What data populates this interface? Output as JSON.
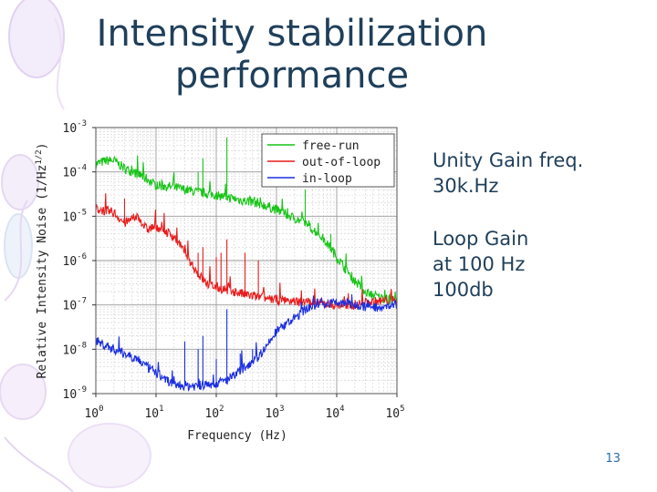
{
  "slide": {
    "title_line1": "Intensity stabilization",
    "title_line2": "performance",
    "bullets": [
      {
        "line1": "Unity Gain freq.",
        "line2": "30k.Hz"
      },
      {
        "line1": "Loop Gain",
        "line2": "at 100 Hz",
        "line3": "100db"
      }
    ],
    "page_number": "13",
    "colors": {
      "title": "#1f3f5a",
      "page_number": "#2a6ea8",
      "decor": "#e6d8f2"
    }
  },
  "chart_data": {
    "type": "line",
    "x_scale": "log",
    "y_scale": "log",
    "xlim": [
      1,
      100000
    ],
    "ylim": [
      1e-09,
      0.001
    ],
    "xlabel": "Frequency (Hz)",
    "ylabel": "Relative Intensity Noise (1/Hz1/2)",
    "ylabel_main": "Relative Intensity Noise (1/Hz",
    "ylabel_sup": "1/2",
    "ylabel_close": ")",
    "x_ticks": [
      {
        "value": 1,
        "base": "10",
        "exp": "0"
      },
      {
        "value": 10,
        "base": "10",
        "exp": "1"
      },
      {
        "value": 100,
        "base": "10",
        "exp": "2"
      },
      {
        "value": 1000,
        "base": "10",
        "exp": "3"
      },
      {
        "value": 10000,
        "base": "10",
        "exp": "4"
      },
      {
        "value": 100000,
        "base": "10",
        "exp": "5"
      }
    ],
    "y_ticks": [
      {
        "value": 0.001,
        "base": "10",
        "exp": "-3"
      },
      {
        "value": 0.0001,
        "base": "10",
        "exp": "-4"
      },
      {
        "value": 1e-05,
        "base": "10",
        "exp": "-5"
      },
      {
        "value": 1e-06,
        "base": "10",
        "exp": "-6"
      },
      {
        "value": 1e-07,
        "base": "10",
        "exp": "-7"
      },
      {
        "value": 1e-08,
        "base": "10",
        "exp": "-8"
      },
      {
        "value": 1e-09,
        "base": "10",
        "exp": "-9"
      }
    ],
    "grid": true,
    "legend_position": "top-right",
    "series": [
      {
        "name": "free-run",
        "color": "#17c417",
        "x": [
          1,
          1.5,
          2,
          3,
          5,
          7,
          10,
          20,
          30,
          50,
          100,
          200,
          300,
          500,
          1000,
          2000,
          3000,
          5000,
          7000,
          10000,
          20000,
          30000,
          50000,
          100000
        ],
        "y": [
          0.00015,
          0.00018,
          0.00018,
          0.00012,
          9e-05,
          7e-05,
          5e-05,
          4.5e-05,
          4e-05,
          3.5e-05,
          3e-05,
          2.5e-05,
          2.2e-05,
          2e-05,
          1.4e-05,
          9e-06,
          7e-06,
          4e-06,
          2.5e-06,
          1.2e-06,
          3.5e-07,
          2e-07,
          1.5e-07,
          1.2e-07
        ],
        "peaks": [
          {
            "x": 10.5,
            "y": 6e-05
          },
          {
            "x": 50,
            "y": 0.0001
          },
          {
            "x": 60,
            "y": 0.0002
          },
          {
            "x": 150,
            "y": 0.0006
          },
          {
            "x": 3000,
            "y": 4e-05
          },
          {
            "x": 8000,
            "y": 4e-06
          }
        ]
      },
      {
        "name": "out-of-loop",
        "color": "#e81c1c",
        "x": [
          1,
          2,
          3,
          5,
          7,
          10,
          20,
          30,
          50,
          70,
          100,
          200,
          300,
          500,
          1000,
          2000,
          3000,
          5000,
          10000,
          20000,
          30000,
          50000,
          100000
        ],
        "y": [
          1.5e-05,
          1.2e-05,
          7e-06,
          1e-05,
          5e-06,
          6e-06,
          3.5e-06,
          1.5e-06,
          5e-07,
          3e-07,
          2.5e-07,
          2e-07,
          1.7e-07,
          1.5e-07,
          1.3e-07,
          1.2e-07,
          1.2e-07,
          1.1e-07,
          1e-07,
          1e-07,
          1.1e-07,
          1.2e-07,
          1.3e-07
        ],
        "peaks": [
          {
            "x": 3,
            "y": 2.5e-05
          },
          {
            "x": 50,
            "y": 1.5e-06
          },
          {
            "x": 60,
            "y": 2e-06
          },
          {
            "x": 100,
            "y": 1.2e-06
          },
          {
            "x": 120,
            "y": 1.5e-06
          },
          {
            "x": 150,
            "y": 3e-06
          },
          {
            "x": 300,
            "y": 1.5e-06
          },
          {
            "x": 500,
            "y": 1e-06
          }
        ]
      },
      {
        "name": "in-loop",
        "color": "#1a2ee0",
        "x": [
          1,
          1.5,
          2,
          3,
          5,
          7,
          10,
          15,
          20,
          30,
          50,
          70,
          100,
          150,
          200,
          300,
          500,
          700,
          1000,
          2000,
          3000,
          5000,
          10000,
          20000,
          30000,
          50000,
          100000
        ],
        "y": [
          1.5e-08,
          1.2e-08,
          1e-08,
          8e-09,
          6e-09,
          4e-09,
          3e-09,
          2e-09,
          1.6e-09,
          1.5e-09,
          1.5e-09,
          1.6e-09,
          1.7e-09,
          2e-09,
          2.5e-09,
          4e-09,
          7e-09,
          1.2e-08,
          2.5e-08,
          5e-08,
          8e-08,
          1.1e-07,
          1.1e-07,
          1e-07,
          9e-08,
          9e-08,
          1e-07
        ],
        "peaks": [
          {
            "x": 30,
            "y": 1.5e-08
          },
          {
            "x": 50,
            "y": 1e-08
          },
          {
            "x": 60,
            "y": 2e-08
          },
          {
            "x": 100,
            "y": 6e-09
          },
          {
            "x": 150,
            "y": 8e-08
          },
          {
            "x": 250,
            "y": 8e-09
          },
          {
            "x": 400,
            "y": 1e-08
          }
        ]
      }
    ]
  }
}
